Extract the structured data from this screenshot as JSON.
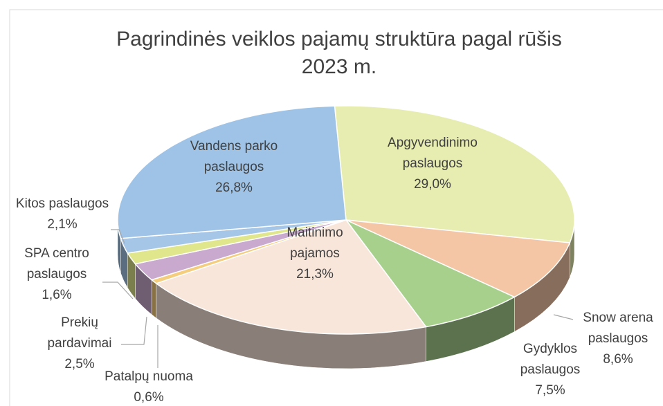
{
  "chart_data": {
    "type": "pie3d",
    "title": "Pagrindinės veiklos pajamų struktūra  pagal rūšis 2023 m.",
    "categories": [
      "Apgyvendinimo paslaugos",
      "Snow arena paslaugos",
      "Gydyklos paslaugos",
      "Maitinimo pajamos",
      "Patalpų nuoma",
      "Prekių pardavimai",
      "SPA centro paslaugos",
      "Kitos paslaugos",
      "Vandens parko paslaugos"
    ],
    "values": [
      29.0,
      8.6,
      7.5,
      21.3,
      0.6,
      2.5,
      1.6,
      2.1,
      26.8
    ],
    "value_labels": [
      "29,0%",
      "8,6%",
      "7,5%",
      "21,3%",
      "0,6%",
      "2,5%",
      "1,6%",
      "2,1%",
      "26,8%"
    ],
    "colors": [
      "#e7edb0",
      "#f5c6a6",
      "#a8d08d",
      "#f9e6da",
      "#f5cd7e",
      "#c9a9cd",
      "#dfe68c",
      "#a6c6e8",
      "#9fc3e6"
    ]
  }
}
